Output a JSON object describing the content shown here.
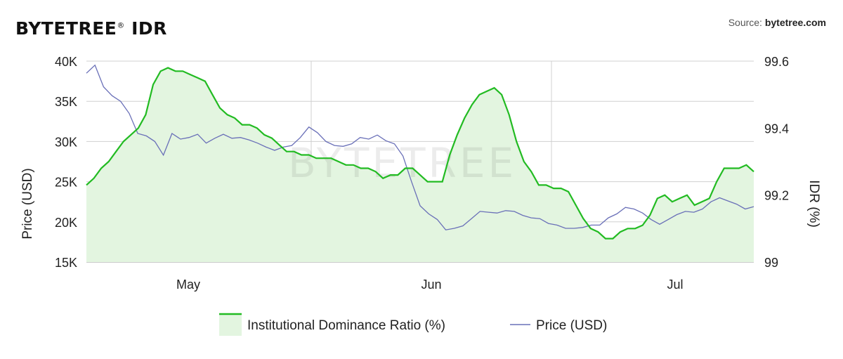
{
  "header": {
    "brand": "BYTETREE",
    "brand_mark": "®",
    "brand_suffix": " IDR",
    "source_label": "Source: ",
    "source_site": "bytetree.com"
  },
  "watermark": "BYTETREE",
  "colors": {
    "idr_line": "#22bb22",
    "idr_fill": "#e3f5e0",
    "price_line": "#6a70b8",
    "grid": "#d0d0d0"
  },
  "chart_data": {
    "type": "line",
    "x_tick_labels": [
      "May",
      "Jun",
      "Jul"
    ],
    "left_axis": {
      "label": "Price (USD)",
      "ticks": [
        "40K",
        "35K",
        "30K",
        "25K",
        "20K",
        "15K"
      ],
      "range": [
        15000,
        40000
      ]
    },
    "right_axis": {
      "label": "IDR (%)",
      "ticks": [
        "99.6",
        "99.4",
        "99.2",
        "99"
      ],
      "range": [
        99.0,
        99.6
      ]
    },
    "grid": true,
    "legend_position": "bottom",
    "series": [
      {
        "name": "Institutional Dominance Ratio (%)",
        "axis": "right",
        "type": "area",
        "values": [
          99.23,
          99.25,
          99.28,
          99.3,
          99.33,
          99.36,
          99.38,
          99.4,
          99.44,
          99.53,
          99.57,
          99.58,
          99.57,
          99.57,
          99.56,
          99.55,
          99.54,
          99.5,
          99.46,
          99.44,
          99.43,
          99.41,
          99.41,
          99.4,
          99.38,
          99.37,
          99.35,
          99.33,
          99.33,
          99.32,
          99.32,
          99.31,
          99.31,
          99.31,
          99.3,
          99.29,
          99.29,
          99.28,
          99.28,
          99.27,
          99.25,
          99.26,
          99.26,
          99.28,
          99.28,
          99.26,
          99.24,
          99.24,
          99.24,
          99.32,
          99.38,
          99.43,
          99.47,
          99.5,
          99.51,
          99.52,
          99.5,
          99.44,
          99.36,
          99.3,
          99.27,
          99.23,
          99.23,
          99.22,
          99.22,
          99.21,
          99.17,
          99.13,
          99.1,
          99.09,
          99.07,
          99.07,
          99.09,
          99.1,
          99.1,
          99.11,
          99.14,
          99.19,
          99.2,
          99.18,
          99.19,
          99.2,
          99.17,
          99.18,
          99.19,
          99.24,
          99.28,
          99.28,
          99.28,
          99.29,
          99.27
        ],
        "x_range": [
          0,
          90
        ]
      },
      {
        "name": "Price (USD)",
        "axis": "left",
        "type": "line",
        "values": [
          38500,
          39500,
          36800,
          35700,
          35000,
          33500,
          31000,
          30700,
          30000,
          28300,
          31000,
          30300,
          30500,
          30900,
          29800,
          30400,
          30900,
          30400,
          30500,
          30200,
          29800,
          29300,
          28900,
          29300,
          29500,
          30500,
          31800,
          31100,
          30000,
          29500,
          29400,
          29700,
          30500,
          30300,
          30800,
          30100,
          29700,
          28200,
          25000,
          22000,
          21000,
          20300,
          19000,
          19200,
          19500,
          20400,
          21300,
          21200,
          21100,
          21400,
          21300,
          20800,
          20500,
          20400,
          19800,
          19600,
          19200,
          19200,
          19300,
          19600,
          19600,
          20500,
          21000,
          21800,
          21600,
          21100,
          20300,
          19700,
          20300,
          20900,
          21300,
          21200,
          21600,
          22500,
          23000,
          22600,
          22200,
          21600,
          21900
        ]
      }
    ]
  }
}
